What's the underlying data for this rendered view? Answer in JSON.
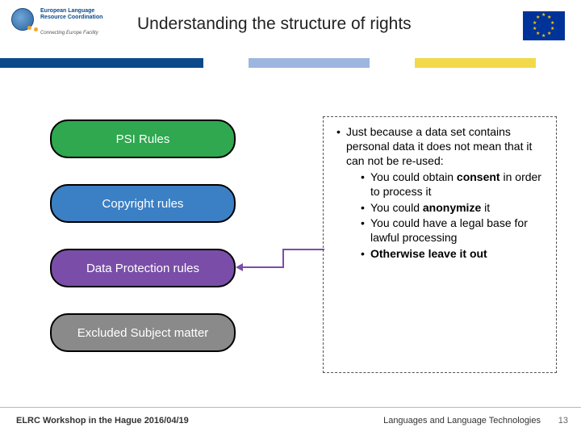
{
  "header": {
    "logo_lines": "European Language\nResource Coordination",
    "logo_sub": "Connecting Europe Facility",
    "title": "Understanding the structure of rights"
  },
  "stripes": {
    "color1": "#0b4a8a",
    "color2": "#9db6e0",
    "color3": "#f2d94a"
  },
  "pills": [
    {
      "label": "PSI Rules",
      "bg": "#2fa84f"
    },
    {
      "label": "Copyright rules",
      "bg": "#3b7fc4"
    },
    {
      "label": "Data Protection rules",
      "bg": "#7a4ea8"
    },
    {
      "label": "Excluded Subject matter",
      "bg": "#8a8a8a"
    }
  ],
  "callout": {
    "lead": "Just because a data set contains personal data it does not mean that it can not be re-used:",
    "items": [
      {
        "pre": "You could obtain ",
        "b": "consent",
        "post": " in order to process it"
      },
      {
        "pre": "You could ",
        "b": "anonymize",
        "post": " it"
      },
      {
        "pre": "You could have a legal base for lawful processing",
        "b": "",
        "post": ""
      },
      {
        "pre": "",
        "b": "Otherwise leave it out",
        "post": ""
      }
    ],
    "border_color": "#555555"
  },
  "connector": {
    "color": "#7a4ea8"
  },
  "footer": {
    "left": "ELRC Workshop in the Hague 2016/04/19",
    "right": "Languages and Language Technologies",
    "page": "13"
  },
  "eu_flag": {
    "bg": "#003399",
    "star_color": "#ffcc00"
  },
  "colors": {
    "background": "#ffffff",
    "text": "#000000",
    "title": "#222222"
  }
}
